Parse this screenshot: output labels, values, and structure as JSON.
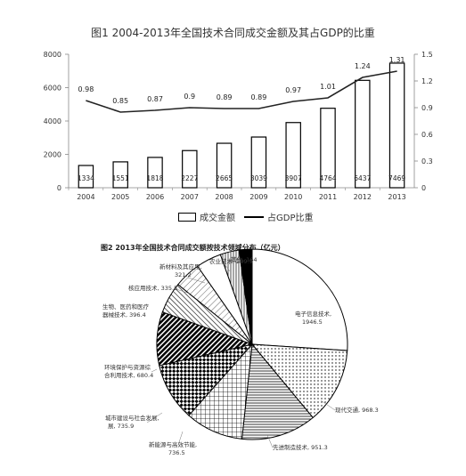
{
  "chart_data": [
    {
      "type": "bar",
      "title": "图1  2004-2013年全国技术合同成交金额及其占GDP的比重",
      "categories": [
        "2004",
        "2005",
        "2006",
        "2007",
        "2008",
        "2009",
        "2010",
        "2011",
        "2012",
        "2013"
      ],
      "series": [
        {
          "name": "成交金额",
          "kind": "bar",
          "axis": "left",
          "values": [
            1334,
            1551,
            1818,
            2227,
            2665,
            3039,
            3907,
            4764,
            6437,
            7469
          ],
          "labels": [
            "1334",
            "1551",
            "1818",
            "2227",
            "2665",
            "3039",
            "3907",
            "4764",
            "6437",
            "7469"
          ]
        },
        {
          "name": "占GDP比重",
          "kind": "line",
          "axis": "right",
          "values": [
            0.98,
            0.85,
            0.87,
            0.9,
            0.89,
            0.89,
            0.97,
            1.01,
            1.24,
            1.31
          ],
          "labels": [
            "0.98",
            "0.85",
            "0.87",
            "0.9",
            "0.89",
            "0.89",
            "0.97",
            "1.01",
            "1.24",
            "1.31"
          ]
        }
      ],
      "y_left": {
        "ylim": [
          0,
          8000
        ],
        "ticks": [
          "0",
          "2000",
          "4000",
          "6000",
          "8000"
        ]
      },
      "y_right": {
        "ylim": [
          0,
          1.5
        ],
        "ticks": [
          "0",
          "0.3",
          "0.6",
          "0.9",
          "1.2",
          "1.5"
        ]
      },
      "legend_position": "bottom"
    },
    {
      "type": "pie",
      "title": "图2   2013年全国技术合同成交额按技术领域分布（亿元）",
      "slices": [
        {
          "label": "电子信息技术,",
          "value_text": "1946.5",
          "value": 1946.5,
          "pattern": "solid-white"
        },
        {
          "label": "现代交通,",
          "value_text": "968.3",
          "value": 968.3,
          "pattern": "dots"
        },
        {
          "label": "先进制造技术,",
          "value_text": "951.3",
          "value": 951.3,
          "pattern": "hline"
        },
        {
          "label": "新能源与高效节能,",
          "value_text": "736.5",
          "value": 736.5,
          "pattern": "grid"
        },
        {
          "label": "城市建设与社会发展,",
          "value_text": "735.9",
          "value": 735.9,
          "pattern": "checker"
        },
        {
          "label": "环境保护与资源综合利用技术,",
          "value_text": "680.4",
          "value": 680.4,
          "pattern": "diag-dark"
        },
        {
          "label": "生物、医药和医疗器械技术,",
          "value_text": "396.4",
          "value": 396.4,
          "pattern": "diag"
        },
        {
          "label": "核应用技术,",
          "value_text": "335.5",
          "value": 335.5,
          "pattern": "diag-light"
        },
        {
          "label": "新材料及其应用,",
          "value_text": "321.2",
          "value": 321.2,
          "pattern": "white"
        },
        {
          "label": "农业技术,",
          "value_text": "239.9",
          "value": 239.9,
          "pattern": "vline"
        },
        {
          "label": "其他,",
          "value_text": "164",
          "value": 164,
          "pattern": "black"
        }
      ]
    }
  ],
  "legend1": {
    "bar_label": "成交金额",
    "line_label": "占GDP比重"
  },
  "fig2_labels": {
    "电子信息技术": "电子信息技术,",
    "v1": "1946.5",
    "xdjt": "现代交通, 968.3",
    "xjzz": "先进制造技术, 951.3",
    "xny1": "新能源与高效节能,",
    "xny2": "736.5",
    "cs1": "城市建设与社会发展,",
    "cs2": "展, 735.9",
    "hj1": "环境保护与资源综",
    "hj2": "合利用技术, 680.4",
    "sw1": "生物、医药和医疗",
    "sw2": "器械技术, 396.4",
    "hyy": "核应用技术, 335.5",
    "xcl1": "新材料及其应用,",
    "xcl2": "321.2",
    "ny": "农业技术, 239.9",
    "qt": "其他, 164"
  }
}
